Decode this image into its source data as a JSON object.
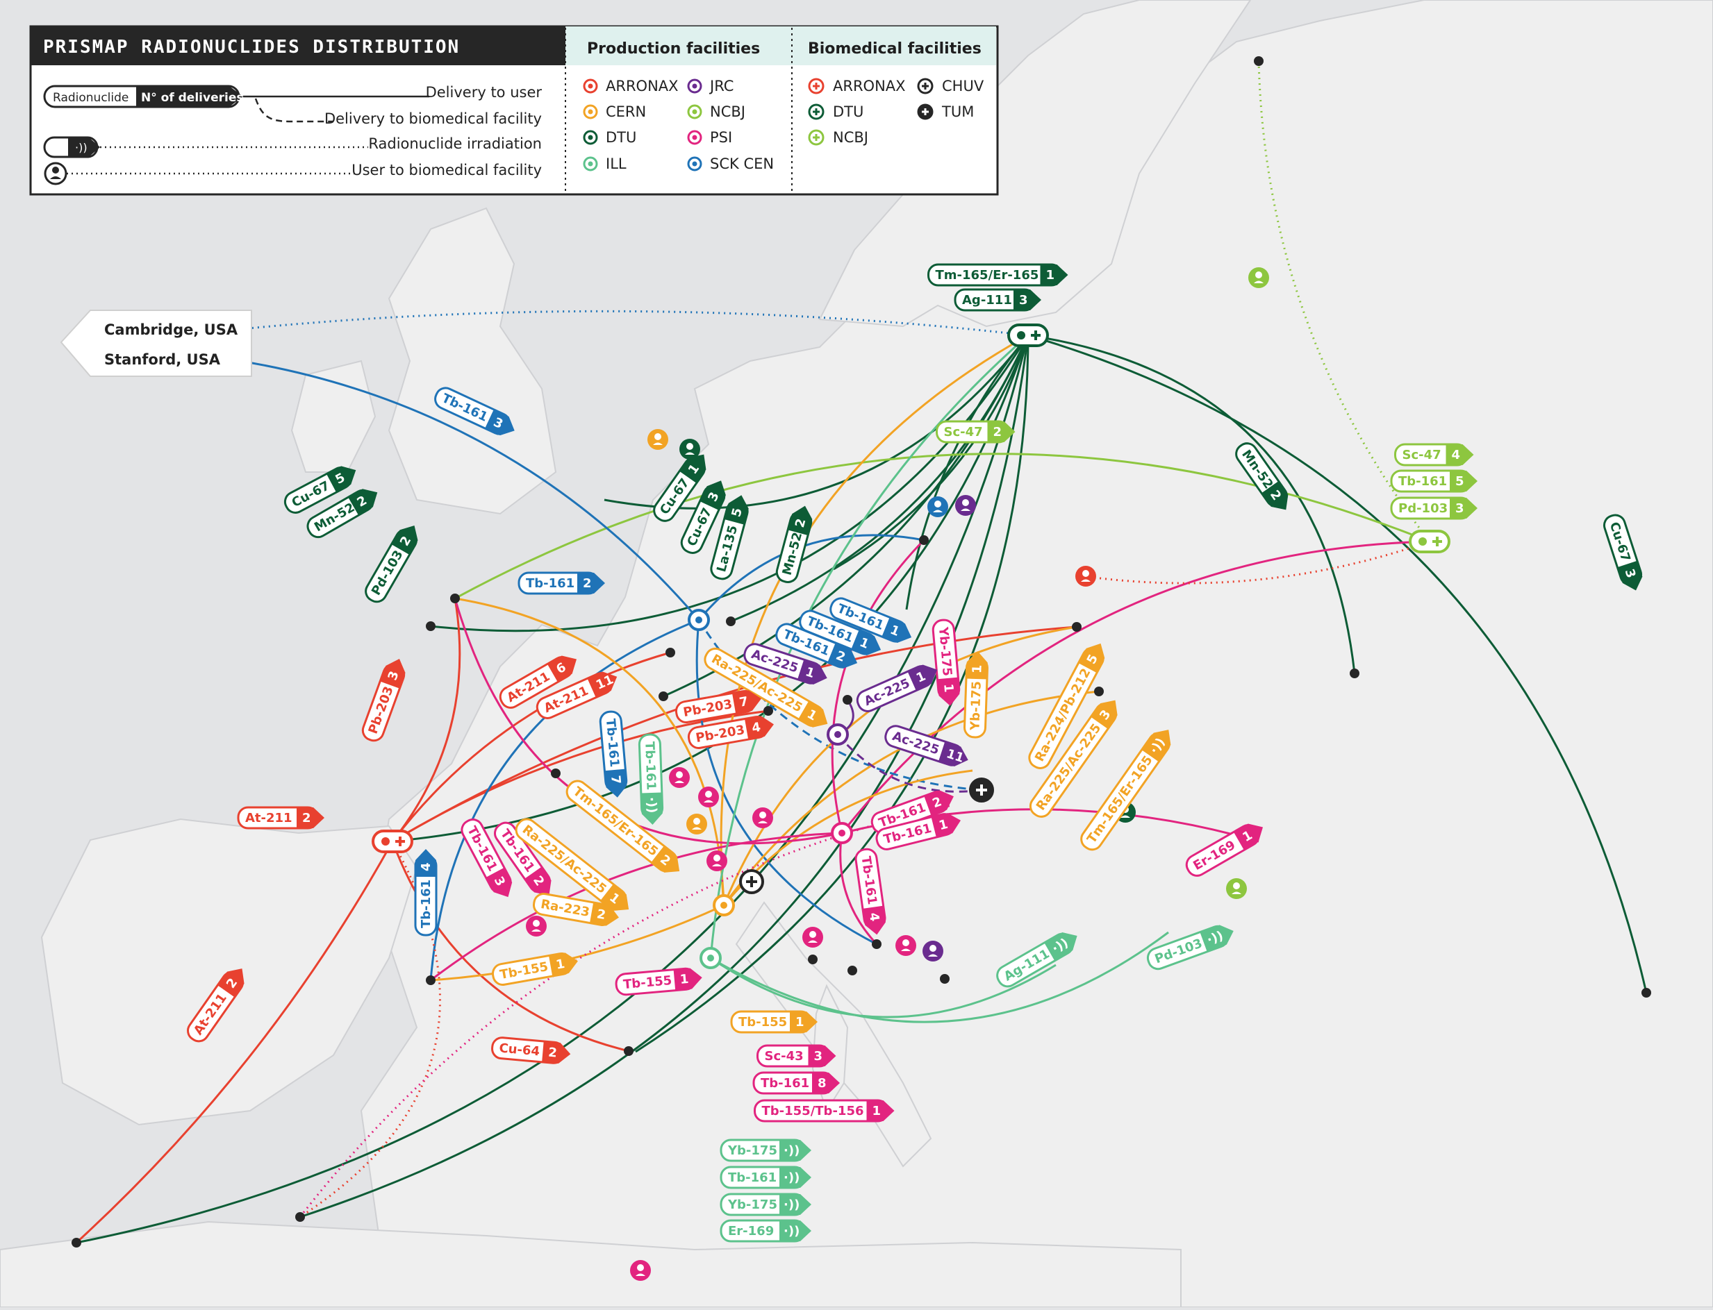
{
  "title": "PRISMAP RADIONUCLIDES DISTRIBUTION",
  "colors": {
    "ARRONAX": "#e8412f",
    "CERN": "#f2a324",
    "DTU": "#0d5c36",
    "ILL": "#5cc28c",
    "JRC": "#6a2c8f",
    "NCBJ": "#8dc63f",
    "PSI": "#e2247f",
    "SCKCEN": "#1f73b7",
    "ink": "#262626",
    "map_bg": "#e3e4e6",
    "land": "#efefef"
  },
  "legend": {
    "key": {
      "pill_name": "Radionuclide",
      "pill_count": "N° of deliveries",
      "delivery_user": "Delivery to user",
      "delivery_bio": "Delivery to biomedical facility",
      "irradiation": "Radionuclide irradiation",
      "user_bio": "User to biomedical facility"
    },
    "production_header": "Production facilities",
    "production": [
      "ARRONAX",
      "JRC",
      "CERN",
      "NCBJ",
      "DTU",
      "PSI",
      "ILL",
      "SCK CEN"
    ],
    "biomedical_header": "Biomedical facilities",
    "biomedical": [
      "ARRONAX",
      "CHUV",
      "DTU",
      "TUM",
      "NCBJ"
    ]
  },
  "cities": [
    "Cambridge, USA",
    "Stanford, USA"
  ],
  "labels": [
    {
      "n": "Tm-165/Er-165",
      "c": "1"
    },
    {
      "n": "Ag-111",
      "c": "3"
    },
    {
      "n": "Tb-161",
      "c": "3"
    },
    {
      "n": "Cu-67",
      "c": "5"
    },
    {
      "n": "Mn-52",
      "c": "2"
    },
    {
      "n": "Pd-103",
      "c": "2"
    },
    {
      "n": "Cu-67",
      "c": "1"
    },
    {
      "n": "Cu-67",
      "c": "3"
    },
    {
      "n": "La-135",
      "c": "5"
    },
    {
      "n": "Mn-52",
      "c": "2"
    },
    {
      "n": "Sc-47",
      "c": "2"
    },
    {
      "n": "Mn-52",
      "c": "2"
    },
    {
      "n": "Sc-47",
      "c": "4"
    },
    {
      "n": "Tb-161",
      "c": "5"
    },
    {
      "n": "Pd-103",
      "c": "3"
    },
    {
      "n": "Cu-67",
      "c": "3"
    },
    {
      "n": "Tb-161",
      "c": "2"
    },
    {
      "n": "Tb-161",
      "c": "1"
    },
    {
      "n": "Tb-161",
      "c": "1"
    },
    {
      "n": "Tb-161",
      "c": "2"
    },
    {
      "n": "Yb-175",
      "c": "1"
    },
    {
      "n": "Yb-175",
      "c": "1"
    },
    {
      "n": "Ac-225",
      "c": "1"
    },
    {
      "n": "Ac-225",
      "c": "1"
    },
    {
      "n": "Ac-225",
      "c": "11"
    },
    {
      "n": "Pb-203",
      "c": "3"
    },
    {
      "n": "At-211",
      "c": "6"
    },
    {
      "n": "At-211",
      "c": "11"
    },
    {
      "n": "Ra-225/Ac-225",
      "c": "1"
    },
    {
      "n": "Pb-203",
      "c": "7"
    },
    {
      "n": "Pb-203",
      "c": "4"
    },
    {
      "n": "Tb-161",
      "c": "7"
    },
    {
      "n": "Tb-161",
      "c": ""
    },
    {
      "n": "At-211",
      "c": "2"
    },
    {
      "n": "Tb-161",
      "c": "4"
    },
    {
      "n": "Tb-161",
      "c": "3"
    },
    {
      "n": "Tb-161",
      "c": "2"
    },
    {
      "n": "Ra-225/Ac-225",
      "c": "1"
    },
    {
      "n": "Tm-165/Er-165",
      "c": "2"
    },
    {
      "n": "Ra-223",
      "c": "2"
    },
    {
      "n": "Tb-155",
      "c": "1"
    },
    {
      "n": "Tb-155",
      "c": "1"
    },
    {
      "n": "Ra-224/Pb-212",
      "c": "5"
    },
    {
      "n": "Ra-225/Ac-225",
      "c": "3"
    },
    {
      "n": "Tm-165/Er-165",
      "c": ""
    },
    {
      "n": "Tb-161",
      "c": "2"
    },
    {
      "n": "Tb-161",
      "c": "1"
    },
    {
      "n": "Tb-161",
      "c": "4"
    },
    {
      "n": "Er-169",
      "c": "1"
    },
    {
      "n": "Ag-111",
      "c": ""
    },
    {
      "n": "Pd-103",
      "c": ""
    },
    {
      "n": "At-211",
      "c": "2"
    },
    {
      "n": "Cu-64",
      "c": "2"
    },
    {
      "n": "Tb-155",
      "c": "1"
    },
    {
      "n": "Sc-43",
      "c": "3"
    },
    {
      "n": "Tb-161",
      "c": "8"
    },
    {
      "n": "Tb-155/Tb-156",
      "c": "1"
    },
    {
      "n": "Yb-175",
      "c": ""
    },
    {
      "n": "Tb-161",
      "c": ""
    },
    {
      "n": "Yb-175",
      "c": ""
    },
    {
      "n": "Er-169",
      "c": ""
    }
  ]
}
